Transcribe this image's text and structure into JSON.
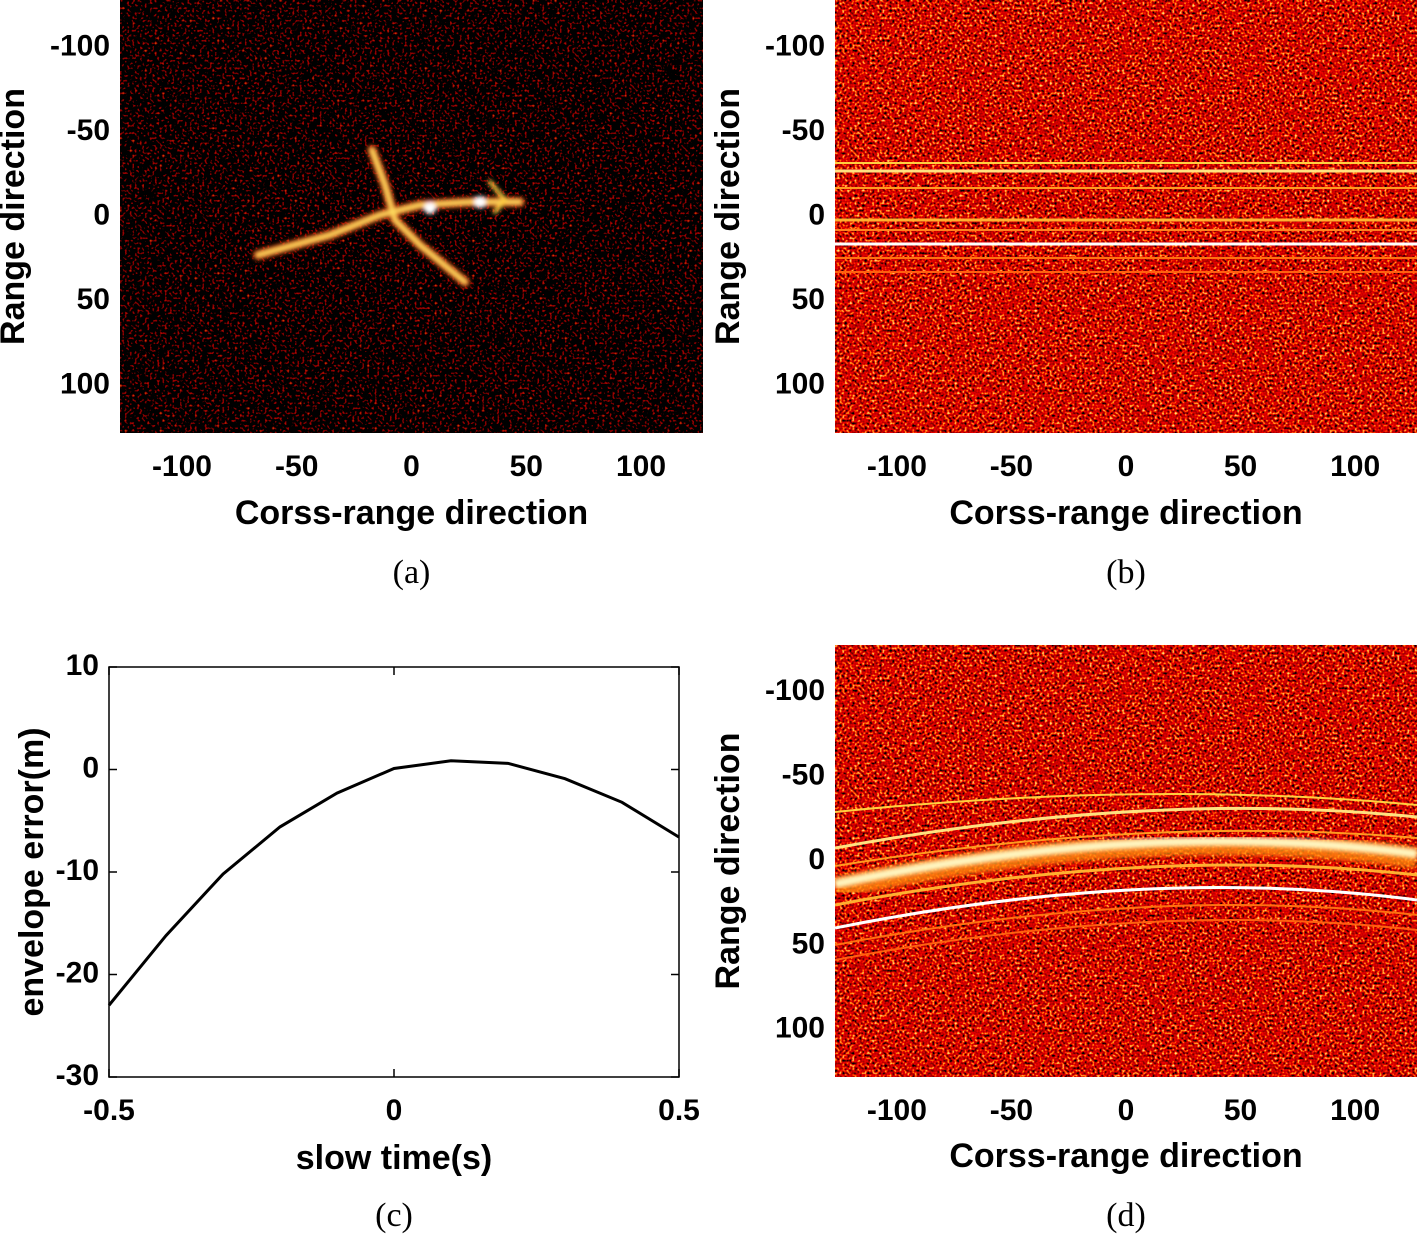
{
  "chart_data": [
    {
      "type": "image",
      "xlabel": "Corss-range direction",
      "ylabel": "Range direction",
      "caption": "(a)",
      "xlim": [
        -127,
        127
      ],
      "ylim": [
        -128,
        128
      ],
      "y_direction": "reverse",
      "xticks": [
        -100,
        -50,
        0,
        50,
        100
      ],
      "yticks": [
        -100,
        -50,
        0,
        50,
        100
      ]
    },
    {
      "type": "image",
      "xlabel": "Corss-range direction",
      "ylabel": "Range direction",
      "caption": "(b)",
      "xlim": [
        -127,
        127
      ],
      "ylim": [
        -128,
        128
      ],
      "y_direction": "reverse",
      "xticks": [
        -100,
        -50,
        0,
        50,
        100
      ],
      "yticks": [
        -100,
        -50,
        0,
        50,
        100
      ]
    },
    {
      "type": "line",
      "xlabel": "slow time(s)",
      "ylabel": "envelope error(m)",
      "caption": "(c)",
      "x": [
        -0.5,
        -0.4,
        -0.3,
        -0.2,
        -0.1,
        0,
        0.1,
        0.2,
        0.3,
        0.4,
        0.5
      ],
      "values": [
        -23.0,
        -16.2,
        -10.2,
        -5.6,
        -2.3,
        0.1,
        0.85,
        0.6,
        -0.9,
        -3.2,
        -6.6
      ],
      "color": "#000000",
      "xlim": [
        -0.5,
        0.5
      ],
      "ylim": [
        -30,
        10
      ],
      "xticks": [
        -0.5,
        0,
        0.5
      ],
      "yticks": [
        -30,
        -20,
        -10,
        0,
        10
      ]
    },
    {
      "type": "image",
      "xlabel": "Corss-range direction",
      "ylabel": "Range direction",
      "caption": "(d)",
      "xlim": [
        -127,
        127
      ],
      "ylim": [
        -128,
        128
      ],
      "y_direction": "reverse",
      "xticks": [
        -100,
        -50,
        0,
        50,
        100
      ],
      "yticks": [
        -100,
        -50,
        0,
        50,
        100
      ]
    }
  ]
}
